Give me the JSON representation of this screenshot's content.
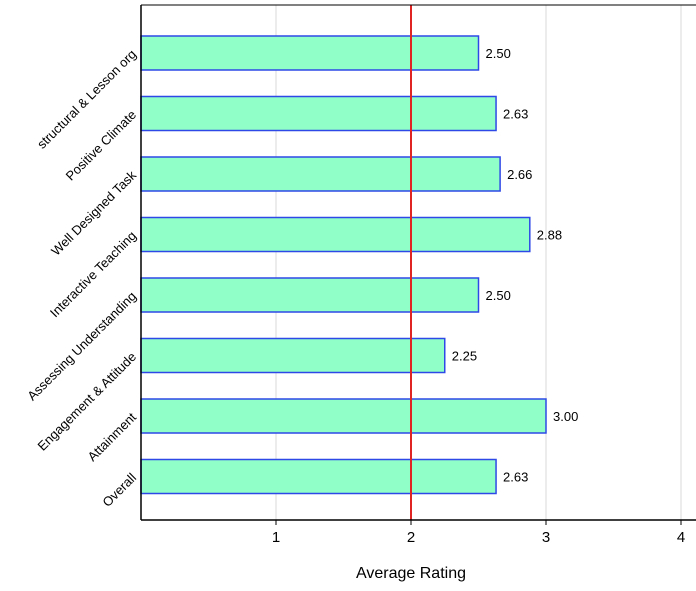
{
  "chart_data": {
    "type": "bar",
    "orientation": "horizontal",
    "categories": [
      "structural & Lesson org",
      "Positive Climate",
      "Well Designed Task",
      "Interactive Teaching",
      "Assessing Understanding",
      "Engagement & Attitude",
      "Attainment",
      "Overall"
    ],
    "values": [
      2.5,
      2.63,
      2.66,
      2.88,
      2.5,
      2.25,
      3.0,
      2.63
    ],
    "data_labels": [
      "2.50",
      "2.63",
      "2.66",
      "2.88",
      "2.50",
      "2.25",
      "3.00",
      "2.63"
    ],
    "xlabel": "Average Rating",
    "ylabel": "",
    "title": "",
    "xlim": [
      0,
      4
    ],
    "x_ticks": [
      1,
      2,
      3,
      4
    ],
    "x_tick_labels": [
      "1",
      "2",
      "3",
      "4"
    ],
    "reference_line": 2,
    "grid": "vertical",
    "legend": "none"
  },
  "colors": {
    "bar_fill": "#91FFC8",
    "bar_stroke": "#2D48E6",
    "reference_line": "#E02424",
    "grid": "#D9D9D9",
    "axis": "#000000"
  }
}
